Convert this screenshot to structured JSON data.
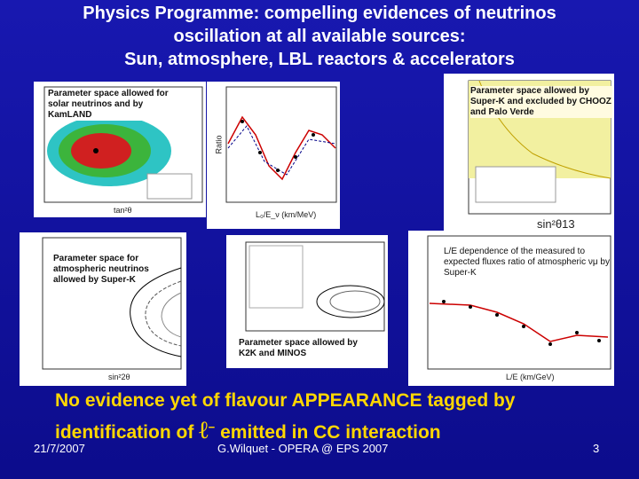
{
  "title": {
    "lines": [
      "Physics Programme: compelling evidences of neutrinos",
      "oscillation at all available sources:",
      "Sun, atmosphere, LBL reactors & accelerators"
    ]
  },
  "panels": [
    {
      "caption": "Parameter space allowed for solar neutrinos and by KamLAND",
      "x_label": "tan²θ"
    },
    {
      "y_label": "Ratio",
      "x_label": "L₀/E_ν (km/MeV)"
    },
    {
      "caption": "Parameter space allowed by Super-K and excluded by CHOOZ and Palo Verde",
      "x_label": "sin²θ13"
    },
    {
      "caption": "Parameter space for atmospheric neutrinos allowed by Super-K",
      "x_label": "sin²2θ"
    },
    {
      "caption": "Parameter space allowed by K2K and MINOS"
    },
    {
      "caption": "L/E dependence of the measured to expected fluxes ratio of atmospheric νμ by Super-K",
      "x_label": "L/E (km/GeV)"
    }
  ],
  "conclusion": {
    "line1": "No evidence yet of flavour APPEARANCE tagged by",
    "line2_start": "identification of",
    "lepton": "ℓ",
    "line2_end": "emitted in CC interaction"
  },
  "footer": {
    "date": "21/7/2007",
    "source": "G.Wilquet - OPERA @ EPS 2007",
    "page": "3"
  }
}
